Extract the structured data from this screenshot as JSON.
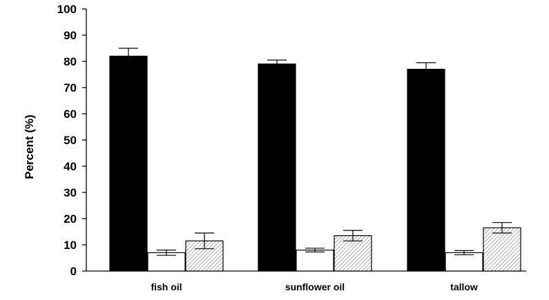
{
  "chart_data": {
    "type": "bar",
    "title": "",
    "xlabel": "",
    "ylabel": "Percent (%)",
    "ylim": [
      0,
      100
    ],
    "yticks": [
      "0",
      "10",
      "20",
      "30",
      "40",
      "50",
      "60",
      "70",
      "80",
      "90",
      "100"
    ],
    "categories": [
      "fish oil",
      "sunflower oil",
      "tallow"
    ],
    "grid": false,
    "legend": "none",
    "series": [
      {
        "fill": "solid",
        "color": "#000000",
        "values": [
          82,
          79,
          77
        ],
        "errors": [
          3,
          1.5,
          2.5
        ]
      },
      {
        "fill": "white",
        "color": "#ffffff",
        "values": [
          7,
          8,
          7
        ],
        "errors": [
          1,
          0.7,
          0.8
        ]
      },
      {
        "fill": "hatched",
        "color": "#ffffff",
        "values": [
          11.5,
          13.5,
          16.5
        ],
        "errors": [
          3,
          2,
          2
        ]
      }
    ]
  }
}
